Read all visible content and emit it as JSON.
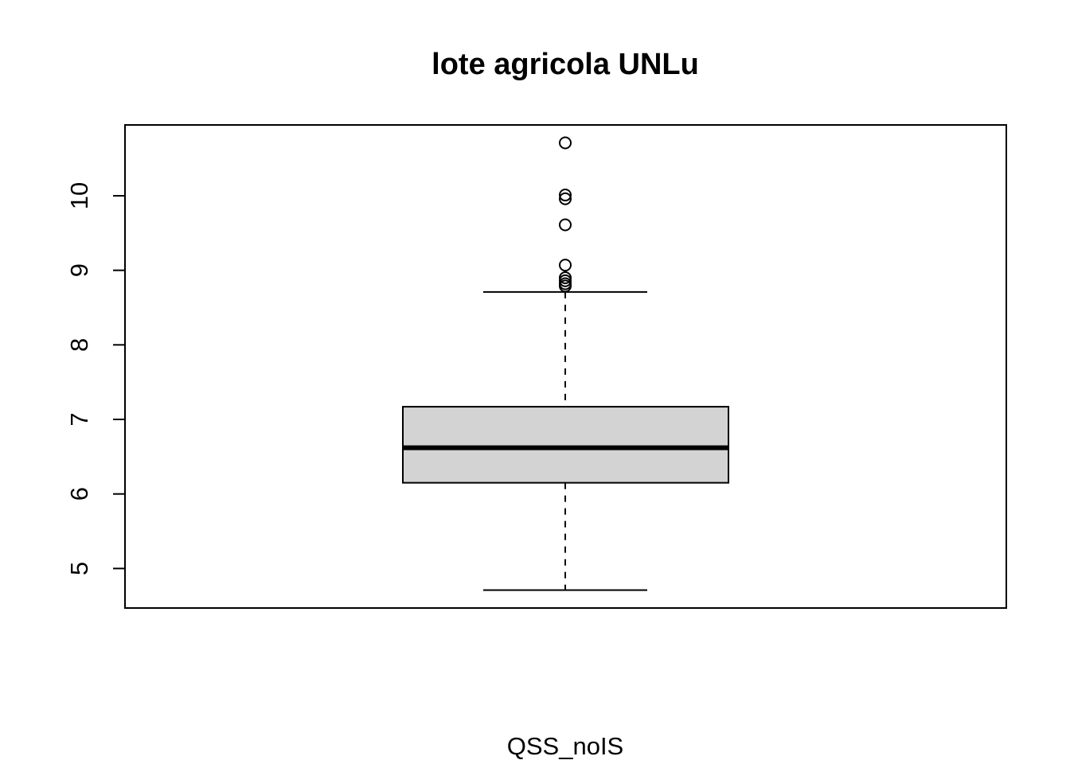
{
  "chart_data": {
    "type": "boxplot",
    "title": "lote agricola UNLu",
    "xlabel": "QSS_noIS",
    "ylabel": "",
    "ylim": [
      4.47,
      10.95
    ],
    "yticks": [
      "5",
      "6",
      "7",
      "8",
      "9",
      "10"
    ],
    "series": [
      {
        "whisker_low": 4.71,
        "q1": 6.15,
        "median": 6.62,
        "q3": 7.17,
        "whisker_high": 8.71,
        "outliers": [
          10.71,
          10.01,
          9.96,
          9.61,
          9.07,
          8.9,
          8.86,
          8.82,
          8.79
        ]
      }
    ],
    "box_fill": "#d3d3d3",
    "grid": false
  }
}
